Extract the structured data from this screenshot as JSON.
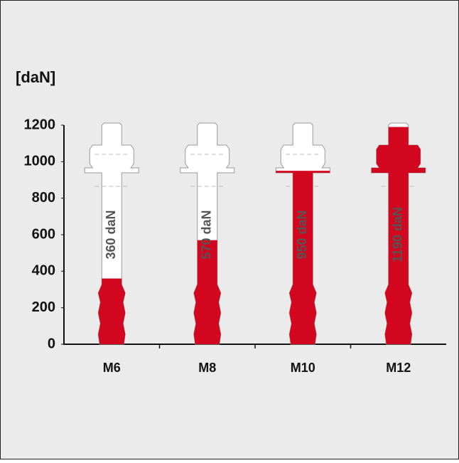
{
  "chart_data": {
    "type": "bar",
    "y_label": "[daN]",
    "categories": [
      "M6",
      "M8",
      "M10",
      "M12"
    ],
    "values": [
      360,
      570,
      950,
      1190
    ],
    "value_labels": [
      "360 daN",
      "570 daN",
      "950 daN",
      "1190 daN"
    ],
    "color": "#d2061e",
    "ylim": [
      0,
      1200
    ],
    "yticks": [
      0,
      200,
      400,
      600,
      800,
      1000,
      1200
    ]
  }
}
